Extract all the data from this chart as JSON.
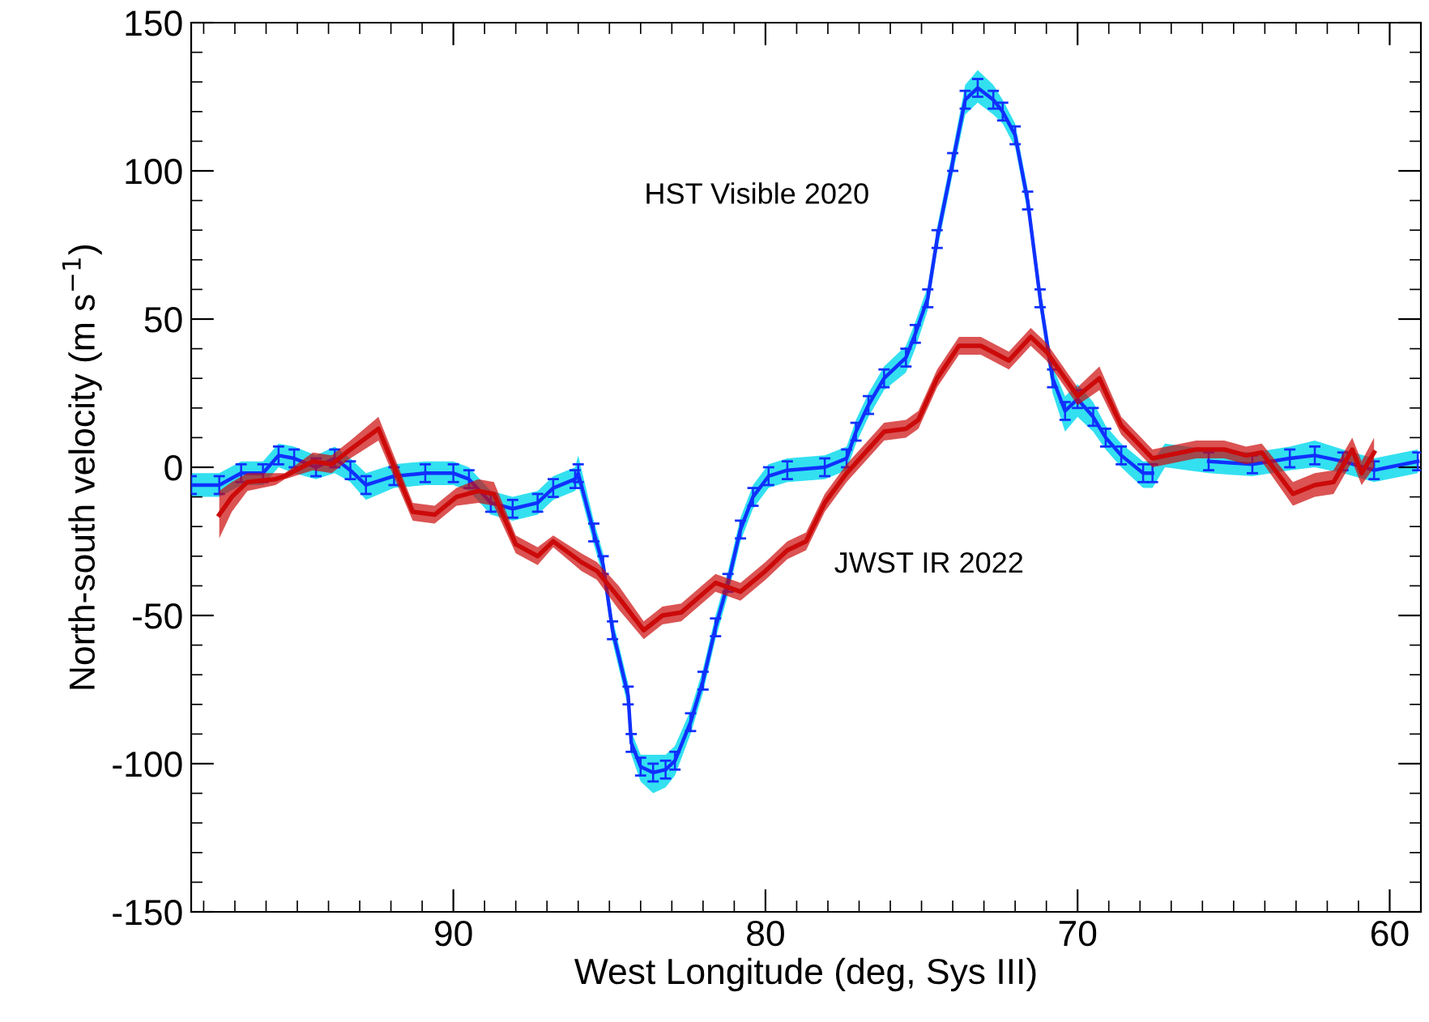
{
  "chart_data": {
    "type": "line",
    "xlabel": "West Longitude (deg, Sys III)",
    "ylabel": "North-south velocity (m s$^{−1}$)",
    "xlim": [
      98.4,
      59.0
    ],
    "xticks": [
      90,
      80,
      70,
      60
    ],
    "ylim": [
      -150,
      150
    ],
    "yticks": [
      -150,
      -100,
      -50,
      0,
      50,
      100,
      150
    ],
    "grid": false,
    "legend": false,
    "series": [
      {
        "name": "HST Visible 2020",
        "color": "#1030ff",
        "marker": "none",
        "x": [
          98.4,
          97.5,
          96.8,
          96.1,
          95.6,
          95.1,
          94.4,
          93.8,
          93.3,
          92.8,
          91.9,
          90.9,
          90.0,
          89.5,
          88.8,
          88.1,
          87.3,
          86.8,
          86.1,
          86.0,
          85.5,
          85.2,
          84.9,
          84.4,
          84.3,
          84.0,
          83.6,
          83.2,
          82.9,
          82.4,
          82.0,
          81.6,
          81.2,
          80.8,
          80.4,
          79.9,
          79.3,
          78.1,
          77.4,
          77.1,
          76.7,
          76.2,
          75.5,
          75.2,
          74.8,
          74.5,
          74.0,
          73.6,
          73.2,
          72.7,
          72.4,
          72.0,
          71.6,
          71.2,
          70.8,
          70.4,
          70.0,
          69.5,
          69.1,
          68.6,
          67.9,
          67.6,
          67.2,
          65.8,
          64.4,
          63.2,
          62.4,
          61.5,
          60.5,
          59.1
        ],
        "values": [
          -6,
          -6,
          -2,
          -2,
          4,
          3,
          0,
          3,
          -1,
          -6,
          -3,
          -2,
          -2,
          -4,
          -12,
          -14,
          -12,
          -7,
          -4,
          -2,
          -22,
          -33,
          -55,
          -77,
          -93,
          -101,
          -103,
          -102,
          -99,
          -86,
          -72,
          -54,
          -39,
          -21,
          -10,
          -3,
          -1,
          0,
          3,
          12,
          21,
          30,
          37,
          45,
          57,
          77,
          103,
          124,
          128,
          124,
          120,
          112,
          90,
          57,
          30,
          19,
          23,
          17,
          10,
          4,
          -2,
          -2,
          null,
          2,
          1,
          3,
          4,
          2,
          -1,
          2
        ],
        "errors": [
          3,
          3,
          3,
          3,
          3,
          3,
          3,
          3,
          3,
          3,
          3,
          3,
          3,
          3,
          3,
          3,
          3,
          3,
          3,
          3,
          3,
          3,
          3,
          3,
          3,
          3,
          3,
          3,
          3,
          3,
          3,
          3,
          3,
          3,
          3,
          3,
          3,
          3,
          3,
          3,
          3,
          3,
          3,
          3,
          3,
          3,
          3,
          3,
          3,
          3,
          3,
          3,
          3,
          3,
          3,
          3,
          3,
          3,
          3,
          3,
          3,
          3,
          null,
          3,
          3,
          3,
          3,
          3,
          3,
          3
        ],
        "lower": [
          -10,
          -10,
          -6,
          -6,
          0,
          -2,
          -4,
          -2,
          -5,
          -11,
          -7,
          -6,
          -6,
          -8,
          -16,
          -18,
          -16,
          -11,
          -8,
          -6,
          -26,
          -37,
          -59,
          -81,
          -97,
          -106,
          -110,
          -108,
          -104,
          -90,
          -76,
          -58,
          -43,
          -25,
          -14,
          -7,
          -5,
          -4,
          -1,
          8,
          17,
          26,
          32,
          40,
          53,
          73,
          99,
          119,
          123,
          119,
          116,
          108,
          86,
          53,
          25,
          12,
          17,
          12,
          6,
          0,
          -7,
          -7,
          0,
          -2,
          -3,
          -1,
          0,
          -2,
          -5,
          -2
        ],
        "upper": [
          -2,
          -2,
          2,
          2,
          8,
          7,
          4,
          7,
          3,
          -2,
          1,
          2,
          2,
          0,
          -8,
          -10,
          -8,
          -3,
          0,
          4,
          -18,
          -29,
          -51,
          -73,
          -89,
          -97,
          -97,
          -97,
          -94,
          -82,
          -68,
          -50,
          -35,
          -17,
          -6,
          1,
          3,
          4,
          7,
          16,
          25,
          34,
          41,
          49,
          61,
          81,
          107,
          129,
          134,
          129,
          124,
          116,
          94,
          61,
          34,
          24,
          28,
          22,
          14,
          8,
          2,
          2,
          8,
          6,
          5,
          7,
          9,
          6,
          3,
          6
        ]
      },
      {
        "name": "JWST IR 2022",
        "color": "#cc0a0a",
        "x": [
          97.5,
          97.1,
          96.6,
          95.7,
          95.4,
          94.5,
          93.9,
          93.3,
          92.4,
          91.3,
          90.6,
          89.9,
          89.2,
          88.7,
          88.0,
          87.3,
          86.8,
          85.9,
          85.4,
          84.7,
          83.9,
          83.3,
          82.7,
          81.6,
          80.8,
          80.0,
          79.3,
          78.7,
          78.1,
          77.4,
          76.2,
          75.5,
          75.1,
          74.5,
          73.8,
          73.1,
          72.2,
          71.5,
          71.0,
          70.0,
          69.3,
          68.6,
          67.6,
          66.2,
          65.3,
          64.6,
          64.1,
          63.1,
          62.4,
          61.8,
          61.2,
          60.9,
          60.5
        ],
        "values": [
          -16,
          -10,
          -5,
          -4,
          -3,
          2,
          1,
          6,
          13,
          -15,
          -16,
          -10,
          -8,
          -9,
          -26,
          -30,
          -25,
          -32,
          -35,
          -44,
          -55,
          -50,
          -49,
          -39,
          -42,
          -35,
          -28,
          -25,
          -12,
          -2,
          12,
          13,
          16,
          30,
          41,
          41,
          36,
          44,
          39,
          24,
          30,
          14,
          3,
          6,
          6,
          4,
          5,
          -9,
          -6,
          -5,
          6,
          -2,
          5
        ],
        "lower": [
          -24,
          -15,
          -8,
          -6,
          -4,
          -1,
          -2,
          3,
          9,
          -18,
          -19,
          -13,
          -12,
          -13,
          -29,
          -33,
          -27,
          -35,
          -38,
          -48,
          -58,
          -53,
          -52,
          -42,
          -45,
          -38,
          -31,
          -28,
          -15,
          -5,
          9,
          10,
          13,
          27,
          38,
          38,
          33,
          41,
          36,
          21,
          26,
          11,
          0,
          3,
          3,
          1,
          2,
          -13,
          -10,
          -9,
          2,
          -6,
          0
        ],
        "upper": [
          -8,
          -5,
          -2,
          -2,
          -2,
          5,
          4,
          9,
          17,
          -12,
          -13,
          -7,
          -4,
          -5,
          -23,
          -27,
          -23,
          -29,
          -32,
          -40,
          -52,
          -47,
          -46,
          -36,
          -39,
          -32,
          -25,
          -22,
          -9,
          1,
          15,
          16,
          19,
          33,
          44,
          44,
          39,
          47,
          42,
          27,
          34,
          17,
          6,
          9,
          9,
          7,
          8,
          -5,
          -2,
          -1,
          10,
          2,
          10
        ]
      }
    ]
  }
}
